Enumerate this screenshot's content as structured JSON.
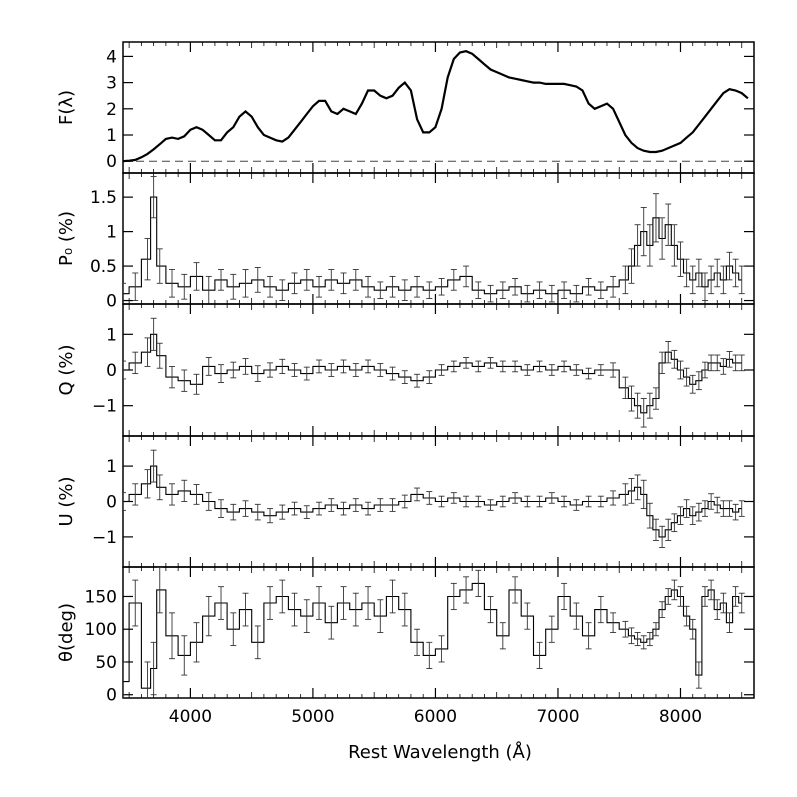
{
  "chart_data": [
    {
      "type": "line",
      "panel": "flux",
      "ylabel": "F(λ)",
      "xlim": [
        3450,
        8600
      ],
      "ylim": [
        -0.45,
        4.55
      ],
      "yticks": [
        0,
        1,
        2,
        3,
        4
      ],
      "ytick_labels": [
        "0",
        "1",
        "2",
        "3",
        "4"
      ],
      "reference_line": 0,
      "series": [
        {
          "name": "flux",
          "x": [
            3450,
            3500,
            3550,
            3600,
            3650,
            3700,
            3750,
            3800,
            3850,
            3900,
            3950,
            4000,
            4050,
            4100,
            4150,
            4200,
            4250,
            4300,
            4350,
            4400,
            4450,
            4500,
            4550,
            4600,
            4650,
            4700,
            4750,
            4800,
            4850,
            4900,
            4950,
            5000,
            5050,
            5100,
            5150,
            5200,
            5250,
            5300,
            5350,
            5400,
            5450,
            5500,
            5550,
            5600,
            5650,
            5700,
            5750,
            5800,
            5850,
            5900,
            5950,
            6000,
            6050,
            6100,
            6150,
            6200,
            6250,
            6300,
            6350,
            6400,
            6450,
            6500,
            6550,
            6600,
            6650,
            6700,
            6750,
            6800,
            6850,
            6900,
            6950,
            7000,
            7050,
            7100,
            7150,
            7200,
            7250,
            7300,
            7350,
            7400,
            7450,
            7500,
            7550,
            7600,
            7650,
            7700,
            7750,
            7800,
            7850,
            7900,
            7950,
            8000,
            8050,
            8100,
            8150,
            8200,
            8250,
            8300,
            8350,
            8400,
            8450,
            8500,
            8550
          ],
          "y": [
            0.0,
            0.02,
            0.05,
            0.15,
            0.28,
            0.45,
            0.65,
            0.85,
            0.9,
            0.85,
            0.95,
            1.2,
            1.3,
            1.2,
            1.0,
            0.8,
            0.8,
            1.1,
            1.3,
            1.7,
            1.9,
            1.7,
            1.3,
            1.0,
            0.9,
            0.8,
            0.75,
            0.9,
            1.2,
            1.5,
            1.8,
            2.1,
            2.3,
            2.3,
            1.9,
            1.8,
            2.0,
            1.9,
            1.8,
            2.2,
            2.7,
            2.7,
            2.5,
            2.4,
            2.5,
            2.8,
            3.0,
            2.7,
            1.6,
            1.1,
            1.1,
            1.3,
            2.0,
            3.2,
            3.9,
            4.15,
            4.2,
            4.1,
            3.9,
            3.7,
            3.5,
            3.4,
            3.3,
            3.2,
            3.15,
            3.1,
            3.05,
            3.0,
            3.0,
            2.95,
            2.95,
            2.95,
            2.95,
            2.9,
            2.85,
            2.7,
            2.2,
            2.0,
            2.1,
            2.2,
            2.0,
            1.5,
            1.0,
            0.7,
            0.5,
            0.4,
            0.35,
            0.35,
            0.4,
            0.5,
            0.6,
            0.7,
            0.9,
            1.1,
            1.4,
            1.7,
            2.0,
            2.3,
            2.6,
            2.75,
            2.7,
            2.6,
            2.4
          ]
        }
      ]
    },
    {
      "type": "line-errorbar",
      "panel": "polarization",
      "ylabel": "P₀ (%)",
      "xlim": [
        3450,
        8600
      ],
      "ylim": [
        -0.05,
        1.85
      ],
      "yticks": [
        0,
        0.5,
        1,
        1.5
      ],
      "ytick_labels": [
        "0",
        "0.5",
        "1",
        "1.5"
      ],
      "series": [
        {
          "name": "P0",
          "x": [
            3450,
            3550,
            3650,
            3700,
            3750,
            3850,
            3950,
            4050,
            4150,
            4250,
            4350,
            4450,
            4550,
            4650,
            4750,
            4850,
            4950,
            5050,
            5150,
            5250,
            5350,
            5450,
            5550,
            5650,
            5750,
            5850,
            5950,
            6050,
            6150,
            6250,
            6350,
            6450,
            6550,
            6650,
            6750,
            6850,
            6950,
            7050,
            7150,
            7250,
            7350,
            7450,
            7550,
            7600,
            7650,
            7700,
            7750,
            7800,
            7850,
            7900,
            7950,
            8000,
            8050,
            8100,
            8150,
            8200,
            8250,
            8300,
            8350,
            8400,
            8450,
            8500
          ],
          "y": [
            0.1,
            0.2,
            0.6,
            1.5,
            0.5,
            0.25,
            0.2,
            0.35,
            0.15,
            0.3,
            0.2,
            0.25,
            0.3,
            0.2,
            0.15,
            0.25,
            0.3,
            0.2,
            0.3,
            0.25,
            0.3,
            0.2,
            0.15,
            0.2,
            0.15,
            0.2,
            0.15,
            0.2,
            0.3,
            0.35,
            0.15,
            0.1,
            0.15,
            0.2,
            0.1,
            0.15,
            0.1,
            0.15,
            0.1,
            0.2,
            0.15,
            0.2,
            0.3,
            0.5,
            0.8,
            1.0,
            0.8,
            1.2,
            0.9,
            1.1,
            0.8,
            0.6,
            0.4,
            0.3,
            0.4,
            0.2,
            0.3,
            0.4,
            0.3,
            0.5,
            0.4,
            0.3
          ],
          "err": [
            0.15,
            0.2,
            0.3,
            0.3,
            0.25,
            0.2,
            0.18,
            0.2,
            0.2,
            0.15,
            0.18,
            0.2,
            0.18,
            0.15,
            0.15,
            0.15,
            0.15,
            0.15,
            0.15,
            0.15,
            0.15,
            0.15,
            0.12,
            0.15,
            0.15,
            0.15,
            0.12,
            0.12,
            0.15,
            0.15,
            0.12,
            0.12,
            0.12,
            0.12,
            0.12,
            0.12,
            0.12,
            0.12,
            0.12,
            0.12,
            0.12,
            0.15,
            0.2,
            0.25,
            0.3,
            0.35,
            0.3,
            0.35,
            0.3,
            0.3,
            0.3,
            0.25,
            0.2,
            0.2,
            0.2,
            0.2,
            0.2,
            0.2,
            0.2,
            0.2,
            0.2,
            0.2
          ]
        }
      ]
    },
    {
      "type": "line-errorbar",
      "panel": "Q",
      "ylabel": "Q (%)",
      "xlim": [
        3450,
        8600
      ],
      "ylim": [
        -1.85,
        1.85
      ],
      "yticks": [
        -1,
        0,
        1
      ],
      "ytick_labels": [
        "−1",
        "0",
        "1"
      ],
      "series": [
        {
          "name": "Q",
          "x": [
            3450,
            3550,
            3650,
            3700,
            3750,
            3850,
            3950,
            4050,
            4150,
            4250,
            4350,
            4450,
            4550,
            4650,
            4750,
            4850,
            4950,
            5050,
            5150,
            5250,
            5350,
            5450,
            5550,
            5650,
            5750,
            5850,
            5950,
            6050,
            6150,
            6250,
            6350,
            6450,
            6550,
            6650,
            6750,
            6850,
            6950,
            7050,
            7150,
            7250,
            7350,
            7450,
            7550,
            7600,
            7650,
            7700,
            7750,
            7800,
            7850,
            7900,
            7950,
            8000,
            8050,
            8100,
            8150,
            8200,
            8250,
            8300,
            8350,
            8400,
            8450,
            8500
          ],
          "y": [
            0.0,
            0.2,
            0.5,
            1.0,
            0.4,
            -0.2,
            -0.3,
            -0.4,
            0.1,
            -0.1,
            0.0,
            0.1,
            -0.1,
            0.0,
            0.1,
            0.0,
            -0.1,
            0.1,
            0.0,
            0.1,
            0.0,
            0.1,
            0.0,
            -0.1,
            -0.2,
            -0.3,
            -0.2,
            0.0,
            0.1,
            0.2,
            0.1,
            0.2,
            0.1,
            0.1,
            0.0,
            0.1,
            0.0,
            0.1,
            0.0,
            -0.1,
            0.0,
            0.0,
            -0.5,
            -0.8,
            -1.0,
            -1.2,
            -1.0,
            -0.8,
            0.2,
            0.5,
            0.3,
            0.0,
            -0.2,
            -0.4,
            -0.3,
            0.0,
            0.2,
            0.2,
            0.1,
            0.3,
            0.2,
            0.2
          ],
          "err": [
            0.25,
            0.3,
            0.4,
            0.45,
            0.35,
            0.3,
            0.3,
            0.28,
            0.25,
            0.25,
            0.22,
            0.22,
            0.22,
            0.2,
            0.2,
            0.18,
            0.18,
            0.18,
            0.18,
            0.18,
            0.18,
            0.18,
            0.18,
            0.18,
            0.18,
            0.18,
            0.18,
            0.15,
            0.15,
            0.15,
            0.15,
            0.15,
            0.15,
            0.15,
            0.15,
            0.15,
            0.15,
            0.15,
            0.15,
            0.15,
            0.15,
            0.2,
            0.3,
            0.35,
            0.35,
            0.4,
            0.35,
            0.3,
            0.3,
            0.3,
            0.25,
            0.25,
            0.25,
            0.25,
            0.25,
            0.22,
            0.22,
            0.22,
            0.22,
            0.22,
            0.22,
            0.22
          ]
        }
      ]
    },
    {
      "type": "line-errorbar",
      "panel": "U",
      "ylabel": "U (%)",
      "xlim": [
        3450,
        8600
      ],
      "ylim": [
        -1.85,
        1.85
      ],
      "yticks": [
        -1,
        0,
        1
      ],
      "ytick_labels": [
        "−1",
        "0",
        "1"
      ],
      "series": [
        {
          "name": "U",
          "x": [
            3450,
            3550,
            3650,
            3700,
            3750,
            3850,
            3950,
            4050,
            4150,
            4250,
            4350,
            4450,
            4550,
            4650,
            4750,
            4850,
            4950,
            5050,
            5150,
            5250,
            5350,
            5450,
            5550,
            5650,
            5750,
            5850,
            5950,
            6050,
            6150,
            6250,
            6350,
            6450,
            6550,
            6650,
            6750,
            6850,
            6950,
            7050,
            7150,
            7250,
            7350,
            7450,
            7550,
            7600,
            7650,
            7700,
            7750,
            7800,
            7850,
            7900,
            7950,
            8000,
            8050,
            8100,
            8150,
            8200,
            8250,
            8300,
            8350,
            8400,
            8450,
            8500
          ],
          "y": [
            0.0,
            0.2,
            0.5,
            1.0,
            0.4,
            0.2,
            0.3,
            0.2,
            0.0,
            -0.2,
            -0.3,
            -0.2,
            -0.3,
            -0.4,
            -0.3,
            -0.2,
            -0.3,
            -0.2,
            -0.1,
            -0.2,
            -0.1,
            -0.2,
            -0.1,
            -0.1,
            0.0,
            0.2,
            0.1,
            0.0,
            0.1,
            0.0,
            0.0,
            -0.1,
            0.0,
            0.1,
            0.0,
            0.0,
            0.1,
            0.0,
            -0.1,
            0.0,
            0.0,
            0.1,
            0.2,
            0.3,
            0.4,
            0.2,
            -0.4,
            -0.8,
            -1.0,
            -0.8,
            -0.6,
            -0.4,
            -0.2,
            -0.4,
            -0.3,
            -0.2,
            0.0,
            -0.1,
            -0.2,
            -0.2,
            -0.3,
            -0.2
          ],
          "err": [
            0.25,
            0.3,
            0.4,
            0.45,
            0.35,
            0.3,
            0.3,
            0.28,
            0.25,
            0.25,
            0.22,
            0.22,
            0.22,
            0.2,
            0.2,
            0.18,
            0.18,
            0.18,
            0.18,
            0.18,
            0.18,
            0.18,
            0.18,
            0.18,
            0.18,
            0.18,
            0.18,
            0.15,
            0.15,
            0.15,
            0.15,
            0.15,
            0.15,
            0.15,
            0.15,
            0.15,
            0.15,
            0.15,
            0.15,
            0.15,
            0.15,
            0.2,
            0.3,
            0.35,
            0.35,
            0.4,
            0.35,
            0.3,
            0.3,
            0.3,
            0.25,
            0.25,
            0.25,
            0.25,
            0.25,
            0.22,
            0.22,
            0.22,
            0.22,
            0.22,
            0.22,
            0.22
          ]
        }
      ]
    },
    {
      "type": "line-errorbar",
      "panel": "theta",
      "ylabel": "θ(deg)",
      "xlim": [
        3450,
        8600
      ],
      "xlabel": "Rest Wavelength (Å)",
      "xticks": [
        4000,
        5000,
        6000,
        7000,
        8000
      ],
      "xtick_labels": [
        "4000",
        "5000",
        "6000",
        "7000",
        "8000"
      ],
      "ylim": [
        -5,
        195
      ],
      "yticks": [
        0,
        50,
        100,
        150
      ],
      "ytick_labels": [
        "0",
        "50",
        "100",
        "150"
      ],
      "series": [
        {
          "name": "theta",
          "x": [
            3450,
            3550,
            3650,
            3700,
            3750,
            3850,
            3950,
            4050,
            4150,
            4250,
            4350,
            4450,
            4550,
            4650,
            4750,
            4850,
            4950,
            5050,
            5150,
            5250,
            5350,
            5450,
            5550,
            5650,
            5750,
            5850,
            5950,
            6050,
            6150,
            6250,
            6350,
            6450,
            6550,
            6650,
            6750,
            6850,
            6950,
            7050,
            7150,
            7250,
            7350,
            7450,
            7550,
            7600,
            7650,
            7700,
            7750,
            7800,
            7850,
            7900,
            7950,
            8000,
            8050,
            8100,
            8150,
            8200,
            8250,
            8300,
            8350,
            8400,
            8450,
            8500
          ],
          "y": [
            20,
            140,
            10,
            40,
            160,
            90,
            60,
            80,
            120,
            140,
            100,
            130,
            80,
            140,
            150,
            130,
            120,
            140,
            110,
            140,
            130,
            140,
            120,
            150,
            130,
            80,
            60,
            70,
            150,
            160,
            170,
            130,
            90,
            160,
            120,
            60,
            100,
            150,
            120,
            90,
            130,
            110,
            100,
            90,
            85,
            80,
            85,
            100,
            130,
            150,
            160,
            150,
            120,
            100,
            30,
            150,
            160,
            130,
            140,
            110,
            150,
            140
          ],
          "err": [
            30,
            35,
            40,
            40,
            35,
            35,
            30,
            30,
            30,
            25,
            25,
            25,
            25,
            25,
            25,
            25,
            25,
            25,
            25,
            25,
            25,
            25,
            25,
            25,
            25,
            20,
            20,
            20,
            20,
            20,
            20,
            20,
            20,
            20,
            20,
            20,
            20,
            20,
            20,
            20,
            20,
            15,
            12,
            12,
            10,
            10,
            10,
            10,
            12,
            12,
            15,
            15,
            15,
            15,
            20,
            15,
            15,
            15,
            15,
            15,
            15,
            15
          ]
        }
      ]
    }
  ]
}
